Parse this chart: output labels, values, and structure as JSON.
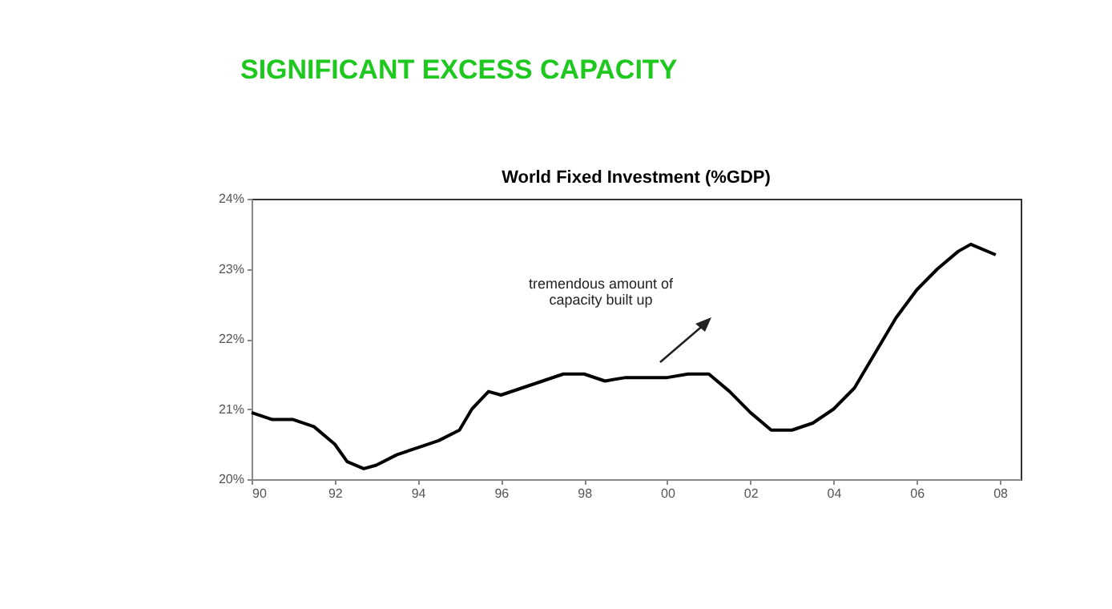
{
  "chart_data": {
    "type": "line",
    "title": "SIGNIFICANT EXCESS CAPACITY",
    "subtitle": "World Fixed Investment (%GDP)",
    "annotations": [
      "tremendous amount of\ncapacity built up"
    ],
    "x": [
      1990,
      1990.5,
      1991,
      1991.5,
      1992,
      1992.3,
      1992.7,
      1993,
      1993.5,
      1994,
      1994.5,
      1995,
      1995.3,
      1995.7,
      1996,
      1996.5,
      1997,
      1997.5,
      1998,
      1998.5,
      1999,
      1999.5,
      2000,
      2000.5,
      2001,
      2001.5,
      2002,
      2002.5,
      2003,
      2003.5,
      2004,
      2004.5,
      2005,
      2005.5,
      2006,
      2006.5,
      2007,
      2007.3,
      2007.9
    ],
    "series": [
      {
        "color": "#000000",
        "values": [
          20.95,
          20.85,
          20.85,
          20.75,
          20.5,
          20.25,
          20.15,
          20.2,
          20.35,
          20.45,
          20.55,
          20.7,
          21.0,
          21.25,
          21.2,
          21.3,
          21.4,
          21.5,
          21.5,
          21.4,
          21.45,
          21.45,
          21.45,
          21.5,
          21.5,
          21.25,
          20.95,
          20.7,
          20.7,
          20.8,
          21.0,
          21.3,
          21.8,
          22.3,
          22.7,
          23.0,
          23.25,
          23.35,
          23.2
        ]
      }
    ],
    "xlim": [
      1990,
      2008.5
    ],
    "xticks": [
      {
        "value": 1990,
        "label": "90"
      },
      {
        "value": 1992,
        "label": "92"
      },
      {
        "value": 1994,
        "label": "94"
      },
      {
        "value": 1996,
        "label": "96"
      },
      {
        "value": 1998,
        "label": "98"
      },
      {
        "value": 2000,
        "label": "00"
      },
      {
        "value": 2002,
        "label": "02"
      },
      {
        "value": 2004,
        "label": "04"
      },
      {
        "value": 2006,
        "label": "06"
      },
      {
        "value": 2008,
        "label": "08"
      }
    ],
    "ylim": [
      20,
      24
    ],
    "yticks": [
      {
        "value": 20,
        "label": "20%"
      },
      {
        "value": 21,
        "label": "21%"
      },
      {
        "value": 22,
        "label": "22%"
      },
      {
        "value": 23,
        "label": "23%"
      },
      {
        "value": 24,
        "label": "24%"
      }
    ],
    "grid": false,
    "legend": false,
    "marker": "none",
    "line_style": "solid"
  }
}
